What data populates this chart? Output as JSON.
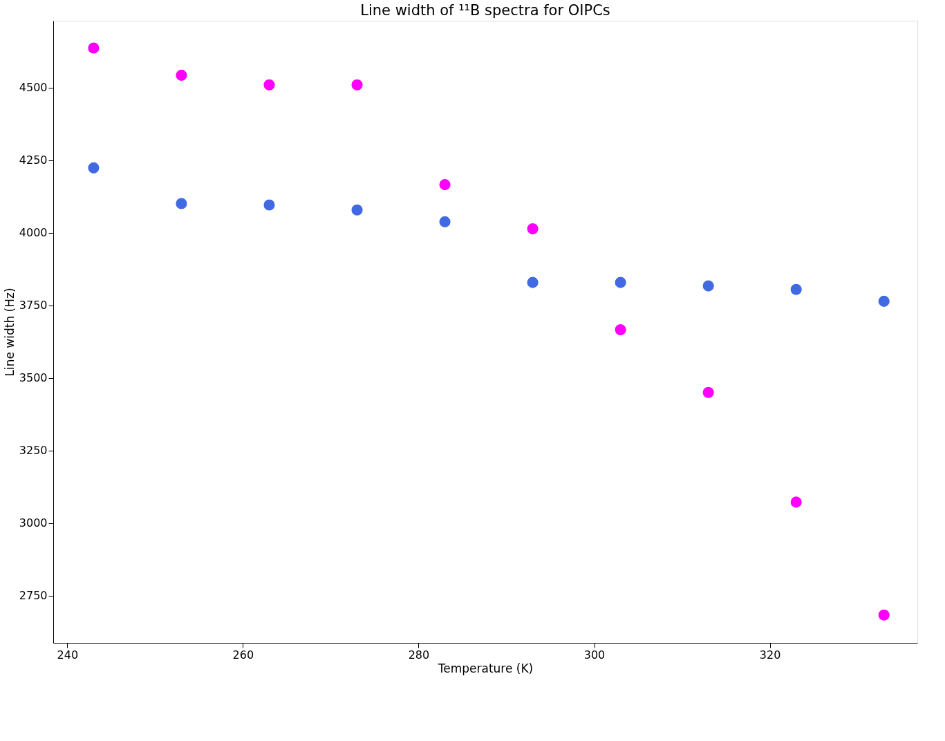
{
  "chart_data": {
    "type": "scatter",
    "title": "Line width of ¹¹B spectra for OIPCs",
    "xlabel": "Temperature (K)",
    "ylabel": "Line width (Hz)",
    "x": [
      243,
      253,
      263,
      273,
      283,
      293,
      303,
      313,
      323,
      333
    ],
    "series": [
      {
        "color": "#ff00ff",
        "values": [
          4637,
          4543,
          4510,
          4510,
          4166,
          4014,
          3666,
          3450,
          3072,
          2683
        ]
      },
      {
        "color": "#4169e1",
        "values": [
          4224,
          4101,
          4096,
          4079,
          4038,
          3829,
          3829,
          3817,
          3805,
          3764
        ]
      }
    ],
    "xlim": [
      238.4,
      336.8
    ],
    "ylim": [
      2587,
      4731
    ],
    "xticks": [
      240,
      260,
      280,
      300,
      320
    ],
    "yticks": [
      2750,
      3000,
      3250,
      3500,
      3750,
      4000,
      4250,
      4500
    ],
    "grid": false,
    "marker": "circle"
  }
}
